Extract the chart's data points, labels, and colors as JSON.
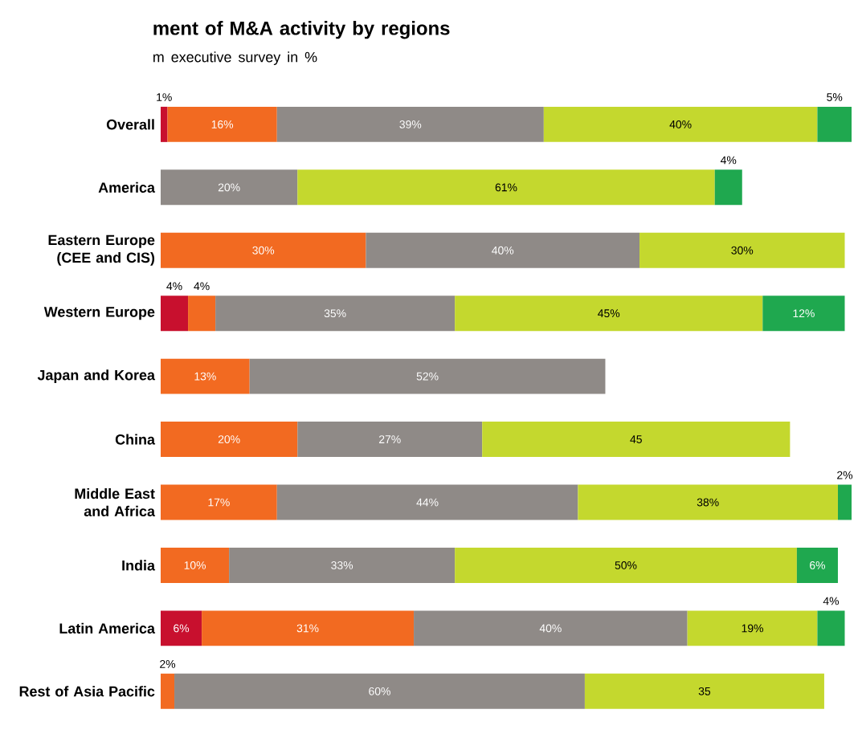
{
  "chart_data": {
    "type": "bar",
    "orientation": "horizontal",
    "stacked": true,
    "title": "ment of M&A activity by regions",
    "subtitle": "m executive survey in %",
    "categories": [
      "Overall",
      "America",
      "Eastern Europe (CEE and CIS)",
      "Western Europe",
      "Japan and Korea",
      "China",
      "Middle East and Africa",
      "India",
      "Latin America",
      "Rest of Asia Pacific"
    ],
    "series": [
      {
        "color": "#c8102e",
        "values": [
          1,
          null,
          null,
          4,
          null,
          null,
          null,
          null,
          6,
          null
        ],
        "value_labels": [
          "1%",
          null,
          null,
          "4%",
          null,
          null,
          null,
          null,
          "6%",
          null
        ]
      },
      {
        "color": "#f26a21",
        "values": [
          16,
          null,
          30,
          4,
          13,
          20,
          17,
          10,
          31,
          2
        ],
        "value_labels": [
          "16%",
          null,
          "30%",
          "4%",
          "13%",
          "20%",
          "17%",
          "10%",
          "31%",
          "2%"
        ]
      },
      {
        "color": "#8f8a87",
        "values": [
          39,
          20,
          40,
          35,
          52,
          27,
          44,
          33,
          40,
          60
        ],
        "value_labels": [
          "39%",
          "20%",
          "40%",
          "35%",
          "52%",
          "27%",
          "44%",
          "33%",
          "40%",
          "60%"
        ]
      },
      {
        "color": "#c4d82e",
        "values": [
          40,
          61,
          30,
          45,
          null,
          45,
          38,
          50,
          19,
          35
        ],
        "value_labels": [
          "40%",
          "61%",
          "30%",
          "45%",
          null,
          "45",
          "38%",
          "50%",
          "19%",
          "35"
        ]
      },
      {
        "color": "#1fa84f",
        "values": [
          5,
          4,
          null,
          12,
          null,
          null,
          2,
          6,
          4,
          null
        ],
        "value_labels": [
          "5%",
          "4%",
          null,
          "12%",
          null,
          null,
          "2%",
          "6%",
          "4%",
          null
        ]
      }
    ]
  }
}
